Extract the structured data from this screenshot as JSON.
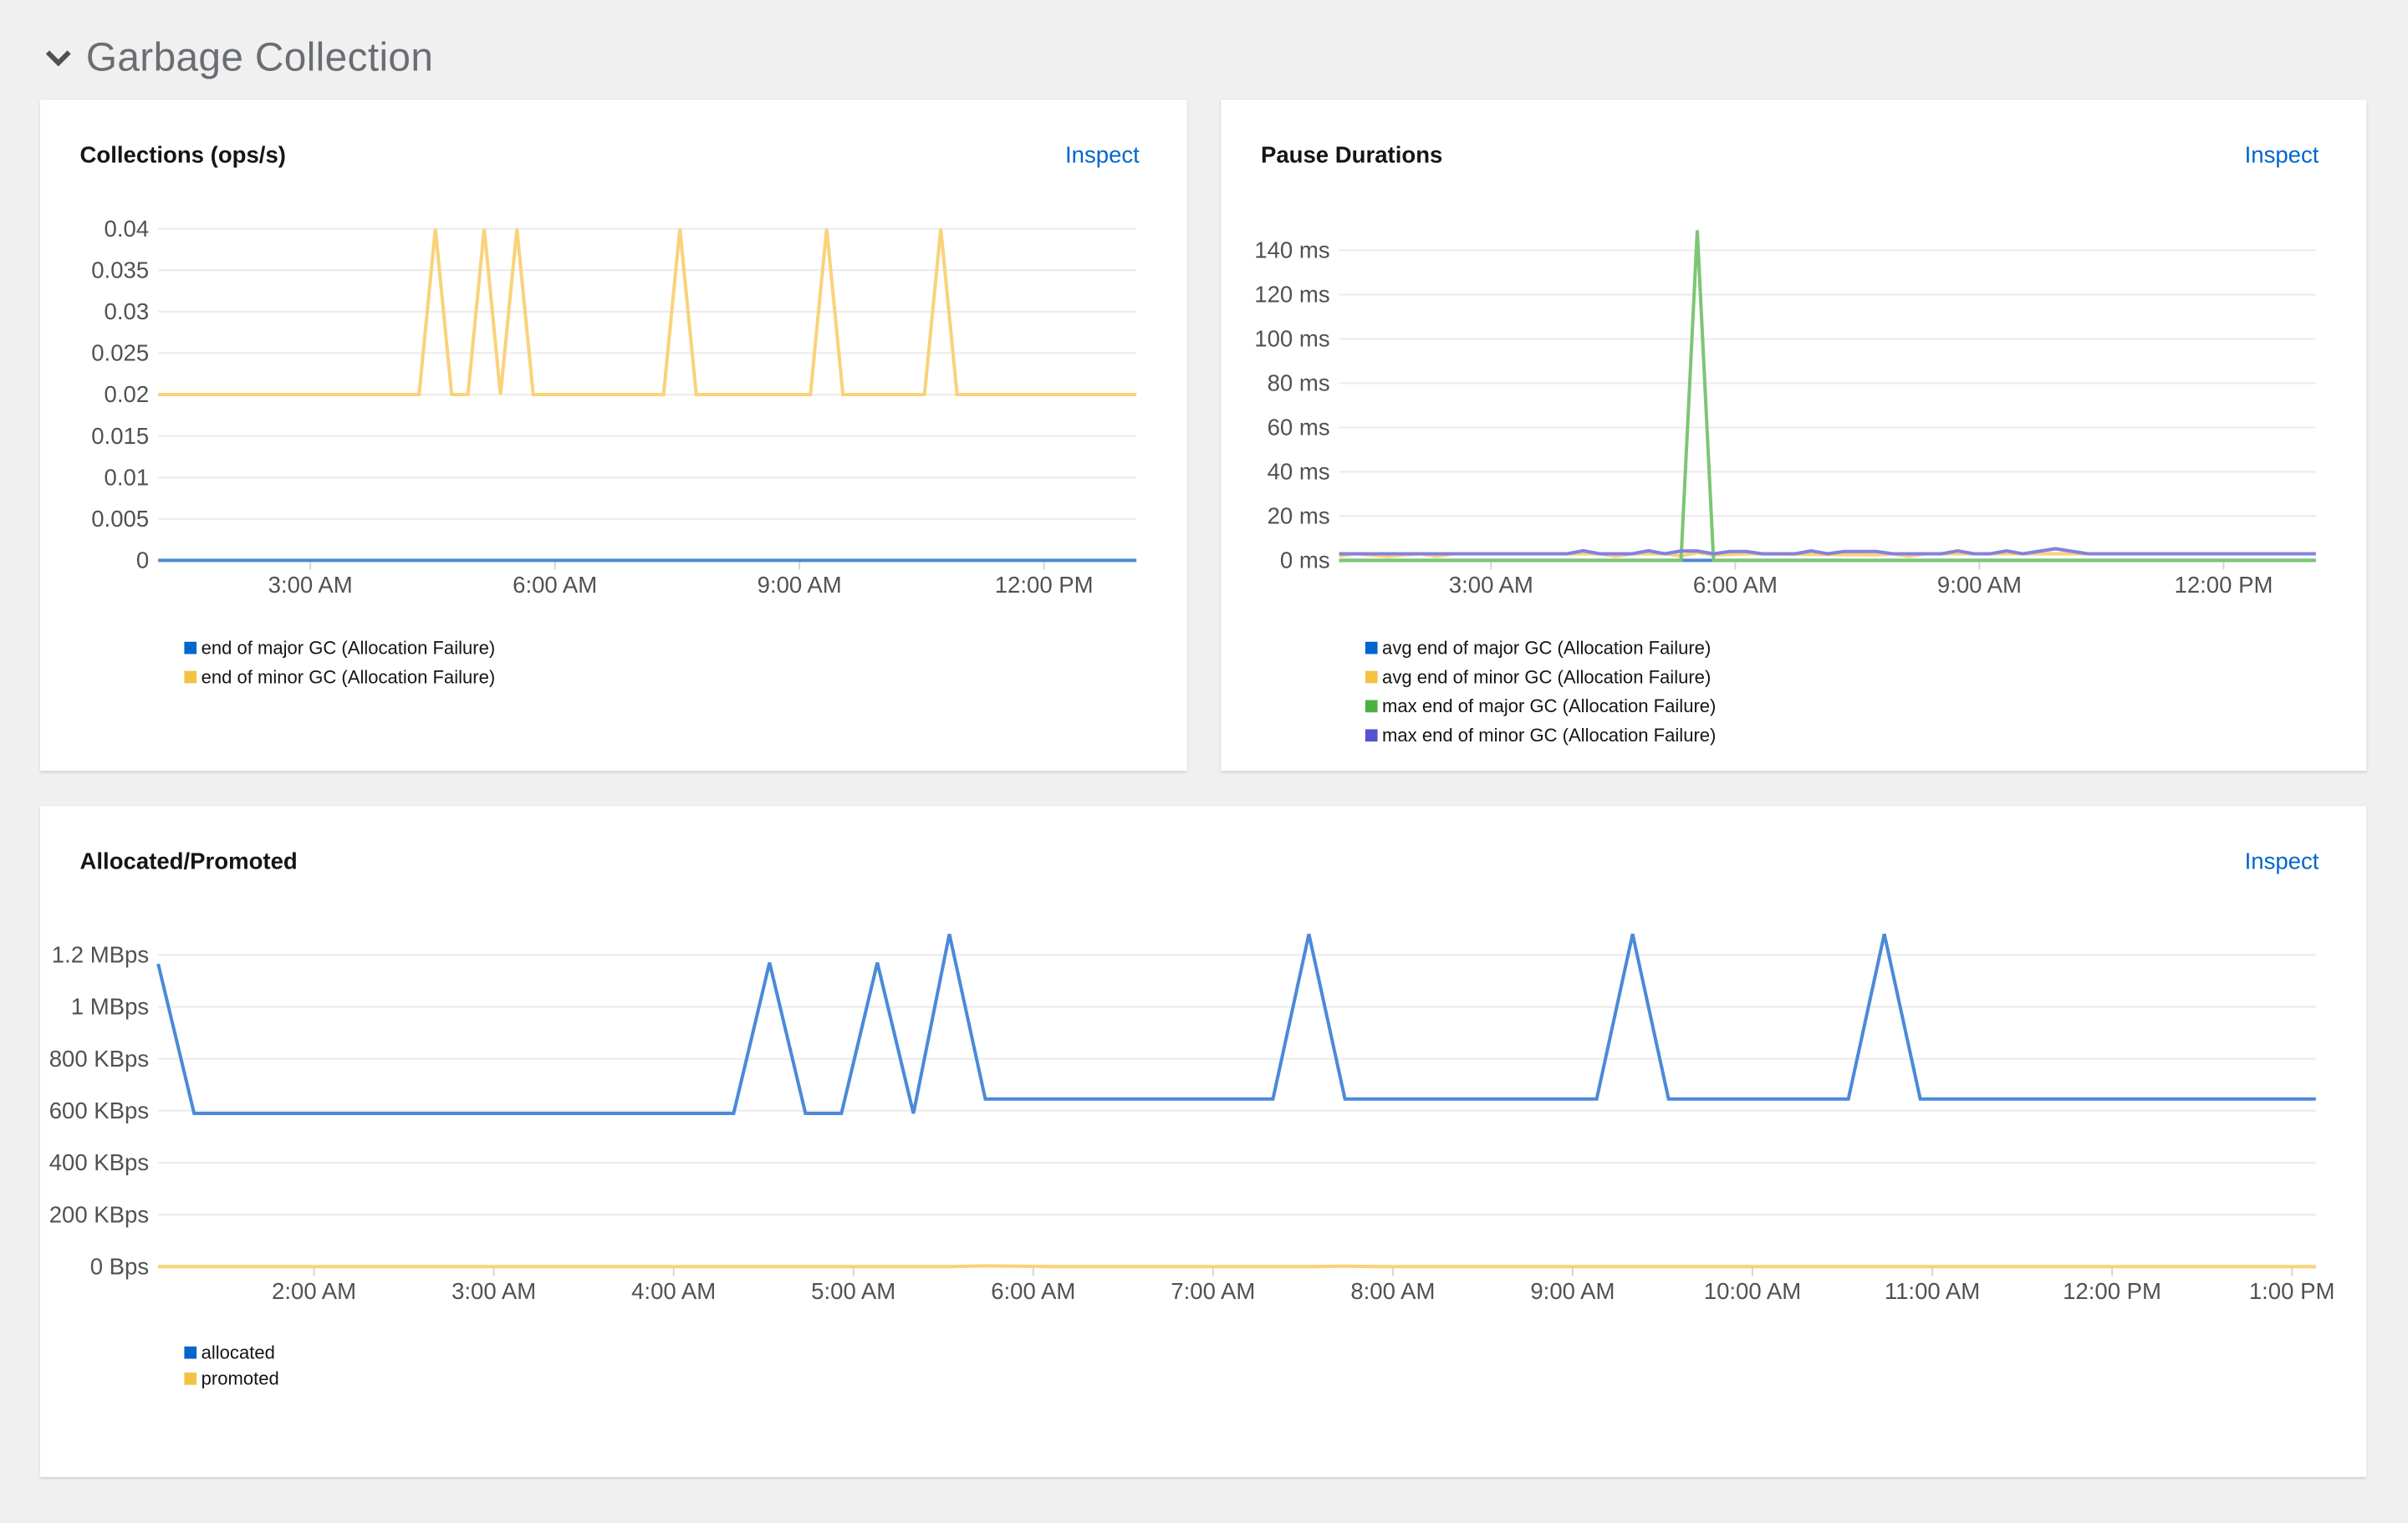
{
  "section": {
    "title": "Garbage Collection",
    "icon": "chevron-down-icon"
  },
  "cards": [
    {
      "title": "Collections (ops/s)",
      "inspect_label": "Inspect"
    },
    {
      "title": "Pause Durations",
      "inspect_label": "Inspect"
    },
    {
      "title": "Allocated/Promoted",
      "inspect_label": "Inspect"
    }
  ],
  "chart_data": [
    {
      "type": "line",
      "title": "Collections (ops/s)",
      "x_range": [
        "01:08",
        "13:08"
      ],
      "ylim": [
        0,
        0.04
      ],
      "grid": true,
      "legend": "bottom-left",
      "x_ticks": [
        {
          "t": "03:00",
          "label": "3:00 AM"
        },
        {
          "t": "06:00",
          "label": "6:00 AM"
        },
        {
          "t": "09:00",
          "label": "9:00 AM"
        },
        {
          "t": "12:00",
          "label": "12:00 PM"
        }
      ],
      "y_ticks": [
        {
          "v": 0.04,
          "label": "0.04"
        },
        {
          "v": 0.035,
          "label": "0.035"
        },
        {
          "v": 0.03,
          "label": "0.03"
        },
        {
          "v": 0.025,
          "label": "0.025"
        },
        {
          "v": 0.02,
          "label": "0.02"
        },
        {
          "v": 0.015,
          "label": "0.015"
        },
        {
          "v": 0.01,
          "label": "0.01"
        },
        {
          "v": 0.005,
          "label": "0.005"
        },
        {
          "v": 0,
          "label": "0"
        }
      ],
      "series": [
        {
          "name": "end of major GC (Allocation Failure)",
          "color": "#0066cc",
          "line_color": "#4a8ad8",
          "points": [
            [
              "01:08",
              0
            ],
            [
              "13:08",
              0
            ]
          ]
        },
        {
          "name": "end of minor GC (Allocation Failure)",
          "color": "#f4c145",
          "line_color": "#f9d27a",
          "points": [
            [
              "01:08",
              0.02
            ],
            [
              "04:20",
              0.02
            ],
            [
              "04:32",
              0.04
            ],
            [
              "04:44",
              0.02
            ],
            [
              "04:56",
              0.02
            ],
            [
              "05:08",
              0.04
            ],
            [
              "05:20",
              0.02
            ],
            [
              "05:32",
              0.04
            ],
            [
              "05:44",
              0.02
            ],
            [
              "07:20",
              0.02
            ],
            [
              "07:32",
              0.04
            ],
            [
              "07:44",
              0.02
            ],
            [
              "09:08",
              0.02
            ],
            [
              "09:20",
              0.04
            ],
            [
              "09:32",
              0.02
            ],
            [
              "10:32",
              0.02
            ],
            [
              "10:44",
              0.04
            ],
            [
              "10:56",
              0.02
            ],
            [
              "13:08",
              0.02
            ]
          ]
        }
      ]
    },
    {
      "type": "line",
      "title": "Pause Durations",
      "x_range": [
        "01:08",
        "13:08"
      ],
      "ylim": [
        0,
        150
      ],
      "grid": true,
      "legend": "bottom-left",
      "x_ticks": [
        {
          "t": "03:00",
          "label": "3:00 AM"
        },
        {
          "t": "06:00",
          "label": "6:00 AM"
        },
        {
          "t": "09:00",
          "label": "9:00 AM"
        },
        {
          "t": "12:00",
          "label": "12:00 PM"
        }
      ],
      "y_ticks": [
        {
          "v": 140,
          "label": "140 ms"
        },
        {
          "v": 120,
          "label": "120 ms"
        },
        {
          "v": 100,
          "label": "100 ms"
        },
        {
          "v": 80,
          "label": "80 ms"
        },
        {
          "v": 60,
          "label": "60 ms"
        },
        {
          "v": 40,
          "label": "40 ms"
        },
        {
          "v": 20,
          "label": "20 ms"
        },
        {
          "v": 0,
          "label": "0 ms"
        }
      ],
      "series": [
        {
          "name": "avg end of major GC (Allocation Failure)",
          "color": "#0066cc",
          "line_color": "#4a8ad8",
          "points": [
            [
              "01:08",
              0
            ],
            [
              "13:08",
              0
            ]
          ]
        },
        {
          "name": "avg end of minor GC (Allocation Failure)",
          "color": "#f4c145",
          "line_color": "#f9d27a",
          "points": [
            [
              "01:08",
              2
            ],
            [
              "01:20",
              3
            ],
            [
              "01:44",
              1.8
            ],
            [
              "02:08",
              3
            ],
            [
              "02:20",
              1.8
            ],
            [
              "02:32",
              3
            ],
            [
              "04:20",
              3
            ],
            [
              "04:32",
              1.8
            ],
            [
              "04:44",
              3
            ],
            [
              "05:08",
              3
            ],
            [
              "05:20",
              2
            ],
            [
              "05:32",
              3.5
            ],
            [
              "05:44",
              2.5
            ],
            [
              "06:08",
              3
            ],
            [
              "07:44",
              2.5
            ],
            [
              "07:56",
              3
            ],
            [
              "08:08",
              1.8
            ],
            [
              "08:20",
              3
            ],
            [
              "13:08",
              3
            ]
          ]
        },
        {
          "name": "max end of major GC (Allocation Failure)",
          "color": "#4cb140",
          "line_color": "#7cc674",
          "points": [
            [
              "01:08",
              0
            ],
            [
              "05:20",
              0
            ],
            [
              "05:32",
              149
            ],
            [
              "05:44",
              0
            ],
            [
              "13:08",
              0
            ]
          ]
        },
        {
          "name": "max end of minor GC (Allocation Failure)",
          "color": "#5752d1",
          "line_color": "#8481dd",
          "points": [
            [
              "01:08",
              3
            ],
            [
              "03:56",
              3
            ],
            [
              "04:08",
              4.4
            ],
            [
              "04:20",
              3
            ],
            [
              "04:44",
              3
            ],
            [
              "04:56",
              4.4
            ],
            [
              "05:08",
              3
            ],
            [
              "05:20",
              4.2
            ],
            [
              "05:32",
              4.2
            ],
            [
              "05:44",
              3
            ],
            [
              "05:56",
              4
            ],
            [
              "06:08",
              4
            ],
            [
              "06:20",
              3
            ],
            [
              "06:44",
              3
            ],
            [
              "06:56",
              4.3
            ],
            [
              "07:08",
              3
            ],
            [
              "07:20",
              4
            ],
            [
              "07:44",
              4
            ],
            [
              "07:56",
              3
            ],
            [
              "08:32",
              3
            ],
            [
              "08:44",
              4.3
            ],
            [
              "08:56",
              3
            ],
            [
              "09:08",
              3
            ],
            [
              "09:20",
              4.3
            ],
            [
              "09:32",
              3
            ],
            [
              "09:56",
              5.3
            ],
            [
              "10:20",
              3
            ],
            [
              "13:08",
              3
            ]
          ]
        }
      ]
    },
    {
      "type": "line",
      "title": "Allocated/Promoted",
      "x_range": [
        "01:08",
        "13:08"
      ],
      "ylim": [
        0,
        1300
      ],
      "y_unit": "KBps",
      "grid": true,
      "legend": "bottom-left",
      "x_ticks": [
        {
          "t": "02:00",
          "label": "2:00 AM"
        },
        {
          "t": "03:00",
          "label": "3:00 AM"
        },
        {
          "t": "04:00",
          "label": "4:00 AM"
        },
        {
          "t": "05:00",
          "label": "5:00 AM"
        },
        {
          "t": "06:00",
          "label": "6:00 AM"
        },
        {
          "t": "07:00",
          "label": "7:00 AM"
        },
        {
          "t": "08:00",
          "label": "8:00 AM"
        },
        {
          "t": "09:00",
          "label": "9:00 AM"
        },
        {
          "t": "10:00",
          "label": "10:00 AM"
        },
        {
          "t": "11:00",
          "label": "11:00 AM"
        },
        {
          "t": "12:00",
          "label": "12:00 PM"
        },
        {
          "t": "13:00",
          "label": "1:00 PM"
        }
      ],
      "y_ticks": [
        {
          "v": 1200,
          "label": "1.2 MBps"
        },
        {
          "v": 1000,
          "label": "1 MBps"
        },
        {
          "v": 800,
          "label": "800 KBps"
        },
        {
          "v": 600,
          "label": "600 KBps"
        },
        {
          "v": 400,
          "label": "400 KBps"
        },
        {
          "v": 200,
          "label": "200 KBps"
        },
        {
          "v": 0,
          "label": "0 Bps"
        }
      ],
      "series": [
        {
          "name": "allocated",
          "color": "#0066cc",
          "line_color": "#4a8ad8",
          "points": [
            [
              "01:08",
              1165
            ],
            [
              "01:20",
              590
            ],
            [
              "04:20",
              590
            ],
            [
              "04:32",
              1170
            ],
            [
              "04:44",
              590
            ],
            [
              "04:56",
              590
            ],
            [
              "05:08",
              1170
            ],
            [
              "05:20",
              590
            ],
            [
              "05:32",
              1280
            ],
            [
              "05:44",
              645
            ],
            [
              "07:20",
              645
            ],
            [
              "07:32",
              1280
            ],
            [
              "07:44",
              645
            ],
            [
              "09:08",
              645
            ],
            [
              "09:20",
              1280
            ],
            [
              "09:32",
              645
            ],
            [
              "10:32",
              645
            ],
            [
              "10:44",
              1280
            ],
            [
              "10:56",
              645
            ],
            [
              "13:08",
              645
            ]
          ]
        },
        {
          "name": "promoted",
          "color": "#f4c145",
          "line_color": "#f9d27a",
          "points": [
            [
              "01:08",
              0
            ],
            [
              "05:32",
              0
            ],
            [
              "05:44",
              3
            ],
            [
              "06:08",
              0
            ],
            [
              "07:32",
              0
            ],
            [
              "07:44",
              2
            ],
            [
              "07:56",
              0
            ],
            [
              "13:08",
              0
            ]
          ]
        }
      ]
    }
  ]
}
